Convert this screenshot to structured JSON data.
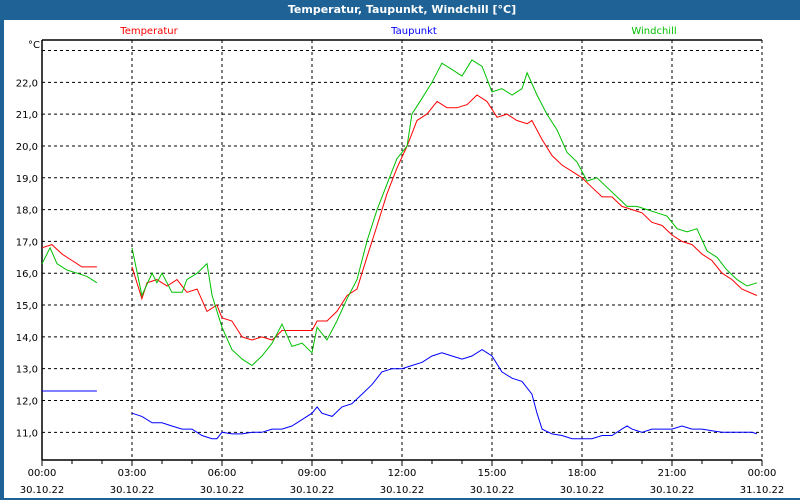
{
  "window_title": "Temperatur, Taupunkt, Windchill [°C]",
  "chart_data": {
    "type": "line",
    "title": "Temperatur, Taupunkt, Windchill [°C]",
    "ylabel": "°C",
    "xlabel": "",
    "ylim": [
      10.13,
      23.33
    ],
    "xlim_hours": [
      0,
      24
    ],
    "grid": true,
    "legend_placement": "top",
    "y_ticks": [
      11,
      12,
      13,
      14,
      15,
      16,
      17,
      18,
      19,
      20,
      21,
      22,
      23
    ],
    "y_tick_labels": [
      "11,0",
      "12,0",
      "13,0",
      "14,0",
      "15,0",
      "16,0",
      "17,0",
      "18,0",
      "19,0",
      "20,0",
      "21,0",
      "22,0",
      ""
    ],
    "x_ticks": [
      {
        "h": 0,
        "time": "00:00",
        "date": "30.10.22"
      },
      {
        "h": 3,
        "time": "03:00",
        "date": "30.10.22"
      },
      {
        "h": 6,
        "time": "06:00",
        "date": "30.10.22"
      },
      {
        "h": 9,
        "time": "09:00",
        "date": "30.10.22"
      },
      {
        "h": 12,
        "time": "12:00",
        "date": "30.10.22"
      },
      {
        "h": 15,
        "time": "15:00",
        "date": "30.10.22"
      },
      {
        "h": 18,
        "time": "18:00",
        "date": "30.10.22"
      },
      {
        "h": 21,
        "time": "21:00",
        "date": "30.10.22"
      },
      {
        "h": 24,
        "time": "00:00",
        "date": "31.10.22"
      }
    ],
    "series": [
      {
        "name": "Temperatur",
        "color": "#ff0000",
        "segments": [
          [
            [
              0,
              16.8
            ],
            [
              0.33,
              16.9
            ],
            [
              0.67,
              16.6
            ],
            [
              1,
              16.4
            ],
            [
              1.33,
              16.2
            ],
            [
              1.83,
              16.2
            ]
          ],
          [
            [
              3,
              16.2
            ],
            [
              3.33,
              15.2
            ],
            [
              3.5,
              15.7
            ],
            [
              3.83,
              15.8
            ],
            [
              4.17,
              15.6
            ],
            [
              4.5,
              15.8
            ],
            [
              4.83,
              15.4
            ],
            [
              5.17,
              15.5
            ],
            [
              5.5,
              14.8
            ],
            [
              5.83,
              15.0
            ],
            [
              6,
              14.6
            ],
            [
              6.33,
              14.5
            ],
            [
              6.67,
              14.0
            ],
            [
              7,
              13.9
            ],
            [
              7.33,
              14.0
            ],
            [
              7.67,
              13.9
            ],
            [
              8,
              14.2
            ],
            [
              8.33,
              14.2
            ],
            [
              8.67,
              14.2
            ],
            [
              9,
              14.2
            ],
            [
              9.17,
              14.5
            ],
            [
              9.5,
              14.5
            ],
            [
              9.83,
              14.8
            ],
            [
              10.17,
              15.3
            ],
            [
              10.5,
              15.5
            ],
            [
              10.83,
              16.5
            ],
            [
              11.17,
              17.5
            ],
            [
              11.5,
              18.5
            ],
            [
              11.83,
              19.3
            ],
            [
              12.17,
              20.0
            ],
            [
              12.5,
              20.8
            ],
            [
              12.83,
              21.0
            ],
            [
              13.17,
              21.4
            ],
            [
              13.5,
              21.2
            ],
            [
              13.83,
              21.2
            ],
            [
              14.17,
              21.3
            ],
            [
              14.5,
              21.6
            ],
            [
              14.83,
              21.4
            ],
            [
              15.17,
              20.9
            ],
            [
              15.5,
              21.0
            ],
            [
              15.83,
              20.8
            ],
            [
              16.17,
              20.7
            ],
            [
              16.33,
              20.8
            ],
            [
              16.67,
              20.2
            ],
            [
              17,
              19.7
            ],
            [
              17.33,
              19.4
            ],
            [
              17.67,
              19.2
            ],
            [
              18,
              19.0
            ],
            [
              18.33,
              18.7
            ],
            [
              18.67,
              18.4
            ],
            [
              19,
              18.4
            ],
            [
              19.33,
              18.1
            ],
            [
              19.67,
              18.0
            ],
            [
              20,
              17.9
            ],
            [
              20.33,
              17.6
            ],
            [
              20.67,
              17.5
            ],
            [
              21,
              17.2
            ],
            [
              21.33,
              17.0
            ],
            [
              21.67,
              16.9
            ],
            [
              22,
              16.6
            ],
            [
              22.33,
              16.4
            ],
            [
              22.67,
              16.0
            ],
            [
              23,
              15.8
            ],
            [
              23.33,
              15.5
            ],
            [
              23.83,
              15.3
            ]
          ]
        ]
      },
      {
        "name": "Taupunkt",
        "color": "#0000ff",
        "segments": [
          [
            [
              0,
              12.3
            ],
            [
              1.83,
              12.3
            ]
          ],
          [
            [
              3,
              11.6
            ],
            [
              3.33,
              11.5
            ],
            [
              3.67,
              11.3
            ],
            [
              4,
              11.3
            ],
            [
              4.33,
              11.2
            ],
            [
              4.67,
              11.1
            ],
            [
              5,
              11.1
            ],
            [
              5.33,
              10.9
            ],
            [
              5.67,
              10.8
            ],
            [
              5.83,
              10.8
            ],
            [
              6,
              11.0
            ],
            [
              6.33,
              10.95
            ],
            [
              6.67,
              10.95
            ],
            [
              7,
              11.0
            ],
            [
              7.33,
              11.0
            ],
            [
              7.67,
              11.1
            ],
            [
              8,
              11.1
            ],
            [
              8.33,
              11.2
            ],
            [
              8.67,
              11.4
            ],
            [
              9,
              11.6
            ],
            [
              9.17,
              11.8
            ],
            [
              9.33,
              11.6
            ],
            [
              9.67,
              11.5
            ],
            [
              10,
              11.8
            ],
            [
              10.33,
              11.9
            ],
            [
              10.67,
              12.2
            ],
            [
              11,
              12.5
            ],
            [
              11.33,
              12.9
            ],
            [
              11.67,
              13.0
            ],
            [
              12,
              13.0
            ],
            [
              12.33,
              13.1
            ],
            [
              12.67,
              13.2
            ],
            [
              13,
              13.4
            ],
            [
              13.33,
              13.5
            ],
            [
              13.67,
              13.4
            ],
            [
              14,
              13.3
            ],
            [
              14.33,
              13.4
            ],
            [
              14.67,
              13.6
            ],
            [
              15,
              13.4
            ],
            [
              15.33,
              12.9
            ],
            [
              15.67,
              12.7
            ],
            [
              16,
              12.6
            ],
            [
              16.33,
              12.2
            ],
            [
              16.5,
              11.6
            ],
            [
              16.67,
              11.1
            ],
            [
              17,
              10.95
            ],
            [
              17.33,
              10.9
            ],
            [
              17.67,
              10.8
            ],
            [
              18,
              10.8
            ],
            [
              18.33,
              10.8
            ],
            [
              18.67,
              10.9
            ],
            [
              19,
              10.9
            ],
            [
              19.33,
              11.1
            ],
            [
              19.5,
              11.2
            ],
            [
              19.67,
              11.1
            ],
            [
              20,
              11.0
            ],
            [
              20.33,
              11.1
            ],
            [
              20.67,
              11.1
            ],
            [
              21,
              11.1
            ],
            [
              21.33,
              11.2
            ],
            [
              21.67,
              11.1
            ],
            [
              22,
              11.1
            ],
            [
              22.33,
              11.05
            ],
            [
              22.67,
              11.0
            ],
            [
              23,
              11.0
            ],
            [
              23.33,
              11.0
            ],
            [
              23.67,
              11.0
            ],
            [
              23.83,
              10.95
            ]
          ]
        ]
      },
      {
        "name": "Windchill",
        "color": "#00c000",
        "segments": [
          [
            [
              0,
              16.3
            ],
            [
              0.27,
              16.8
            ],
            [
              0.5,
              16.3
            ],
            [
              0.83,
              16.1
            ],
            [
              1.17,
              16.0
            ],
            [
              1.5,
              15.9
            ],
            [
              1.83,
              15.7
            ]
          ],
          [
            [
              3,
              16.8
            ],
            [
              3.33,
              15.3
            ],
            [
              3.67,
              16.0
            ],
            [
              3.83,
              15.7
            ],
            [
              4,
              16.0
            ],
            [
              4.33,
              15.4
            ],
            [
              4.67,
              15.4
            ],
            [
              4.83,
              15.8
            ],
            [
              5.17,
              16.0
            ],
            [
              5.5,
              16.3
            ],
            [
              5.67,
              15.3
            ],
            [
              6,
              14.3
            ],
            [
              6.33,
              13.6
            ],
            [
              6.67,
              13.3
            ],
            [
              7,
              13.1
            ],
            [
              7.33,
              13.4
            ],
            [
              7.67,
              13.8
            ],
            [
              8,
              14.4
            ],
            [
              8.33,
              13.7
            ],
            [
              8.67,
              13.8
            ],
            [
              9,
              13.5
            ],
            [
              9.17,
              14.3
            ],
            [
              9.5,
              13.9
            ],
            [
              9.83,
              14.5
            ],
            [
              10.17,
              15.2
            ],
            [
              10.5,
              15.8
            ],
            [
              10.83,
              17.0
            ],
            [
              11.17,
              18.0
            ],
            [
              11.5,
              18.8
            ],
            [
              11.83,
              19.6
            ],
            [
              12.17,
              20.0
            ],
            [
              12.33,
              21.0
            ],
            [
              12.67,
              21.5
            ],
            [
              13,
              22.0
            ],
            [
              13.33,
              22.6
            ],
            [
              13.67,
              22.4
            ],
            [
              14,
              22.2
            ],
            [
              14.33,
              22.7
            ],
            [
              14.67,
              22.5
            ],
            [
              15,
              21.7
            ],
            [
              15.33,
              21.8
            ],
            [
              15.67,
              21.6
            ],
            [
              16,
              21.8
            ],
            [
              16.17,
              22.3
            ],
            [
              16.5,
              21.6
            ],
            [
              16.83,
              21.0
            ],
            [
              17.17,
              20.5
            ],
            [
              17.5,
              19.8
            ],
            [
              17.83,
              19.5
            ],
            [
              18.17,
              18.9
            ],
            [
              18.5,
              19.0
            ],
            [
              18.83,
              18.7
            ],
            [
              19.17,
              18.4
            ],
            [
              19.5,
              18.1
            ],
            [
              19.83,
              18.1
            ],
            [
              20.17,
              18.0
            ],
            [
              20.5,
              17.9
            ],
            [
              20.83,
              17.8
            ],
            [
              21.17,
              17.4
            ],
            [
              21.5,
              17.3
            ],
            [
              21.83,
              17.4
            ],
            [
              22.17,
              16.7
            ],
            [
              22.5,
              16.5
            ],
            [
              22.83,
              16.1
            ],
            [
              23.17,
              15.8
            ],
            [
              23.5,
              15.6
            ],
            [
              23.83,
              15.7
            ]
          ]
        ]
      }
    ]
  }
}
